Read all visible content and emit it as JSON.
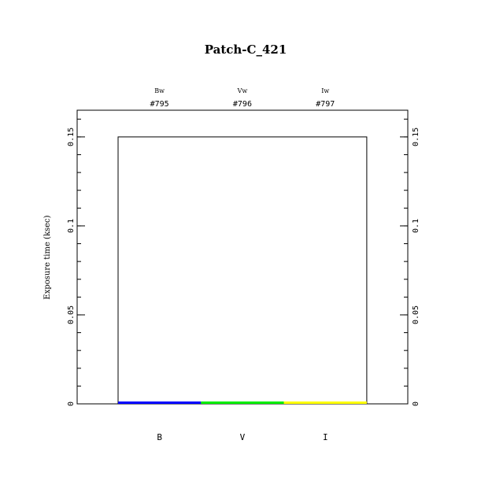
{
  "chart_data": {
    "type": "bar",
    "title": "Patch-C_421",
    "ylabel": "Exposure time (ksec)",
    "xlabel": "",
    "ylim": [
      0,
      0.165
    ],
    "yticks": [
      0,
      0.05,
      0.1,
      0.15
    ],
    "ytick_labels": [
      "0",
      "0.05",
      "0.1",
      "0.15"
    ],
    "minor_tick_step": 0.01,
    "categories": [
      "B",
      "V",
      "I"
    ],
    "filters": [
      "Bw",
      "Vw",
      "Iw"
    ],
    "ids": [
      "#795",
      "#796",
      "#797"
    ],
    "values": [
      0.001,
      0.001,
      0.001
    ],
    "colors": [
      "#0000ff",
      "#00ee00",
      "#ffff00"
    ],
    "total_outline": 0.15,
    "grid": false
  }
}
